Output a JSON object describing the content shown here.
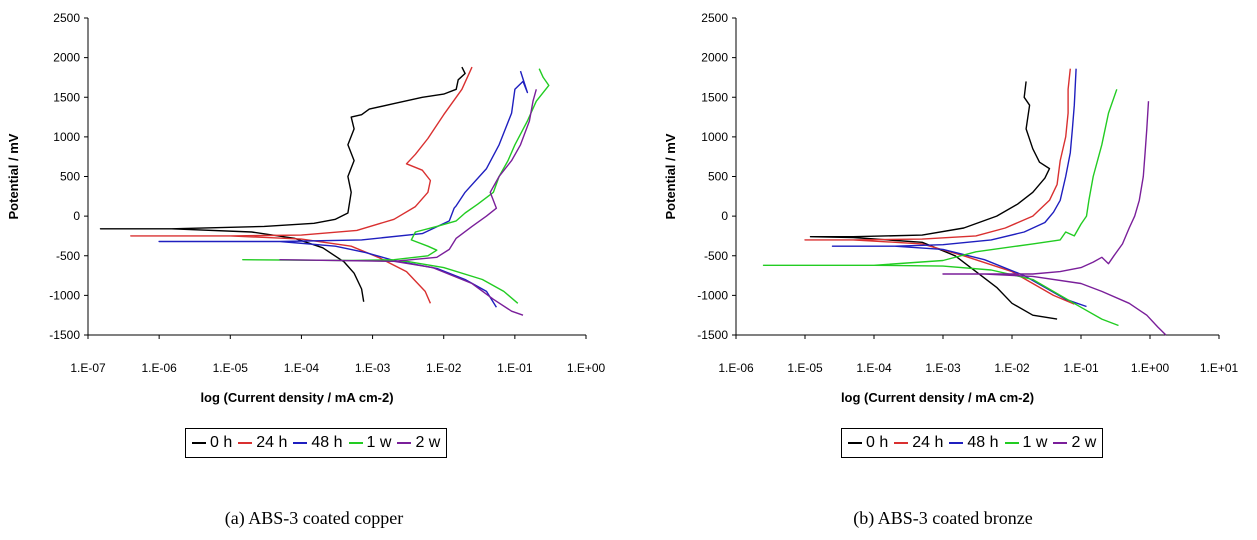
{
  "chart_data": [
    {
      "type": "line",
      "caption": "(a) ABS-3 coated copper",
      "xlabel": "log (Current density / mA cm-2)",
      "ylabel": "Potential / mV",
      "x_scale": "log",
      "xlim": [
        1e-07,
        1
      ],
      "ylim": [
        -1500,
        2500
      ],
      "x_tick_labels": [
        "1.E-07",
        "1.E-06",
        "1.E-05",
        "1.E-04",
        "1.E-03",
        "1.E-02",
        "1.E-01",
        "1.E+00"
      ],
      "y_tick_labels": [
        "2500",
        "2000",
        "1500",
        "1000",
        "500",
        "0",
        "-500",
        "-1000",
        "-1500"
      ],
      "legend_position": "bottom",
      "grid": false,
      "series": [
        {
          "name": "0 h",
          "color": "#000000",
          "points": [
            [
              0.00075,
              -1080
            ],
            [
              0.0007,
              -920
            ],
            [
              0.00055,
              -720
            ],
            [
              0.0004,
              -580
            ],
            [
              0.0002,
              -400
            ],
            [
              8e-05,
              -280
            ],
            [
              2e-05,
              -200
            ],
            [
              1.5e-06,
              -160
            ],
            [
              1.5e-07,
              -160
            ],
            [
              1.5e-06,
              -160
            ],
            [
              3e-05,
              -130
            ],
            [
              0.00015,
              -90
            ],
            [
              0.0003,
              -40
            ],
            [
              0.00045,
              40
            ],
            [
              0.0005,
              300
            ],
            [
              0.00045,
              500
            ],
            [
              0.00055,
              700
            ],
            [
              0.00045,
              900
            ],
            [
              0.00055,
              1100
            ],
            [
              0.0005,
              1250
            ],
            [
              0.0007,
              1280
            ],
            [
              0.0009,
              1350
            ],
            [
              0.002,
              1420
            ],
            [
              0.005,
              1500
            ],
            [
              0.01,
              1540
            ],
            [
              0.015,
              1600
            ],
            [
              0.016,
              1720
            ],
            [
              0.02,
              1800
            ],
            [
              0.018,
              1880
            ]
          ]
        },
        {
          "name": "24 h",
          "color": "#d93030",
          "points": [
            [
              0.0065,
              -1100
            ],
            [
              0.0055,
              -950
            ],
            [
              0.003,
              -700
            ],
            [
              0.0012,
              -520
            ],
            [
              0.0005,
              -380
            ],
            [
              0.0001,
              -290
            ],
            [
              1e-05,
              -250
            ],
            [
              4e-07,
              -250
            ],
            [
              1e-05,
              -250
            ],
            [
              0.0001,
              -240
            ],
            [
              0.0006,
              -180
            ],
            [
              0.002,
              -40
            ],
            [
              0.004,
              120
            ],
            [
              0.006,
              300
            ],
            [
              0.0065,
              450
            ],
            [
              0.005,
              580
            ],
            [
              0.003,
              660
            ],
            [
              0.004,
              780
            ],
            [
              0.006,
              980
            ],
            [
              0.01,
              1280
            ],
            [
              0.018,
              1600
            ],
            [
              0.025,
              1880
            ]
          ]
        },
        {
          "name": "48 h",
          "color": "#1f1fbf",
          "points": [
            [
              0.055,
              -1150
            ],
            [
              0.04,
              -950
            ],
            [
              0.02,
              -800
            ],
            [
              0.008,
              -660
            ],
            [
              0.002,
              -560
            ],
            [
              0.0008,
              -460
            ],
            [
              0.0003,
              -380
            ],
            [
              5e-05,
              -320
            ],
            [
              1e-06,
              -320
            ],
            [
              5e-05,
              -320
            ],
            [
              0.0007,
              -300
            ],
            [
              0.005,
              -220
            ],
            [
              0.012,
              -60
            ],
            [
              0.014,
              100
            ],
            [
              0.015,
              130
            ],
            [
              0.02,
              300
            ],
            [
              0.04,
              600
            ],
            [
              0.06,
              900
            ],
            [
              0.09,
              1300
            ],
            [
              0.1,
              1600
            ],
            [
              0.13,
              1700
            ],
            [
              0.15,
              1560
            ],
            [
              0.12,
              1830
            ]
          ]
        },
        {
          "name": "1 w",
          "color": "#22cc22",
          "points": [
            [
              0.11,
              -1100
            ],
            [
              0.07,
              -950
            ],
            [
              0.035,
              -800
            ],
            [
              0.01,
              -650
            ],
            [
              0.003,
              -570
            ],
            [
              0.0005,
              -560
            ],
            [
              1.5e-05,
              -550
            ],
            [
              0.0005,
              -560
            ],
            [
              0.002,
              -550
            ],
            [
              0.006,
              -500
            ],
            [
              0.008,
              -430
            ],
            [
              0.006,
              -380
            ],
            [
              0.0035,
              -300
            ],
            [
              0.004,
              -200
            ],
            [
              0.008,
              -130
            ],
            [
              0.015,
              -60
            ],
            [
              0.02,
              40
            ],
            [
              0.03,
              150
            ],
            [
              0.05,
              300
            ],
            [
              0.06,
              500
            ],
            [
              0.08,
              700
            ],
            [
              0.1,
              900
            ],
            [
              0.15,
              1200
            ],
            [
              0.2,
              1450
            ],
            [
              0.3,
              1650
            ],
            [
              0.25,
              1750
            ],
            [
              0.22,
              1860
            ]
          ]
        },
        {
          "name": "2 w",
          "color": "#7a1f9a",
          "points": [
            [
              0.13,
              -1250
            ],
            [
              0.09,
              -1200
            ],
            [
              0.05,
              -1050
            ],
            [
              0.025,
              -850
            ],
            [
              0.007,
              -650
            ],
            [
              0.002,
              -570
            ],
            [
              5e-05,
              -550
            ],
            [
              0.002,
              -570
            ],
            [
              0.008,
              -520
            ],
            [
              0.012,
              -420
            ],
            [
              0.015,
              -280
            ],
            [
              0.025,
              -130
            ],
            [
              0.04,
              0
            ],
            [
              0.055,
              100
            ],
            [
              0.045,
              300
            ],
            [
              0.06,
              500
            ],
            [
              0.09,
              700
            ],
            [
              0.12,
              900
            ],
            [
              0.16,
              1200
            ],
            [
              0.18,
              1450
            ],
            [
              0.2,
              1600
            ]
          ]
        }
      ]
    },
    {
      "type": "line",
      "caption": "(b) ABS-3 coated bronze",
      "xlabel": "log (Current density / mA cm-2)",
      "ylabel": "Potential / mV",
      "x_scale": "log",
      "xlim": [
        1e-06,
        10
      ],
      "ylim": [
        -1500,
        2500
      ],
      "x_tick_labels": [
        "1.E-06",
        "1.E-05",
        "1.E-04",
        "1.E-03",
        "1.E-02",
        "1.E-01",
        "1.E+00",
        "1.E+01"
      ],
      "y_tick_labels": [
        "2500",
        "2000",
        "1500",
        "1000",
        "500",
        "0",
        "-500",
        "-1000",
        "-1500"
      ],
      "legend_position": "bottom",
      "grid": false,
      "series": [
        {
          "name": "0 h",
          "color": "#000000",
          "points": [
            [
              0.045,
              -1300
            ],
            [
              0.02,
              -1250
            ],
            [
              0.01,
              -1100
            ],
            [
              0.006,
              -900
            ],
            [
              0.003,
              -700
            ],
            [
              0.0015,
              -500
            ],
            [
              0.0005,
              -330
            ],
            [
              5e-05,
              -270
            ],
            [
              1.2e-05,
              -260
            ],
            [
              5e-05,
              -260
            ],
            [
              0.0005,
              -240
            ],
            [
              0.002,
              -150
            ],
            [
              0.006,
              0
            ],
            [
              0.012,
              150
            ],
            [
              0.02,
              300
            ],
            [
              0.03,
              480
            ],
            [
              0.035,
              600
            ],
            [
              0.025,
              680
            ],
            [
              0.02,
              850
            ],
            [
              0.016,
              1100
            ],
            [
              0.018,
              1400
            ],
            [
              0.015,
              1500
            ],
            [
              0.016,
              1700
            ]
          ]
        },
        {
          "name": "24 h",
          "color": "#d93030",
          "points": [
            [
              0.08,
              -1110
            ],
            [
              0.04,
              -1000
            ],
            [
              0.02,
              -850
            ],
            [
              0.01,
              -700
            ],
            [
              0.002,
              -500
            ],
            [
              0.0005,
              -350
            ],
            [
              5e-05,
              -300
            ],
            [
              1e-05,
              -300
            ],
            [
              5e-05,
              -300
            ],
            [
              0.0005,
              -290
            ],
            [
              0.003,
              -250
            ],
            [
              0.008,
              -150
            ],
            [
              0.02,
              0
            ],
            [
              0.035,
              200
            ],
            [
              0.045,
              400
            ],
            [
              0.05,
              700
            ],
            [
              0.06,
              1000
            ],
            [
              0.065,
              1300
            ],
            [
              0.065,
              1600
            ],
            [
              0.07,
              1860
            ]
          ]
        },
        {
          "name": "48 h",
          "color": "#1f1fbf",
          "points": [
            [
              0.12,
              -1140
            ],
            [
              0.06,
              -1050
            ],
            [
              0.03,
              -900
            ],
            [
              0.015,
              -750
            ],
            [
              0.004,
              -550
            ],
            [
              0.001,
              -420
            ],
            [
              0.0002,
              -380
            ],
            [
              2.5e-05,
              -380
            ],
            [
              0.0002,
              -380
            ],
            [
              0.001,
              -360
            ],
            [
              0.005,
              -300
            ],
            [
              0.015,
              -200
            ],
            [
              0.03,
              -80
            ],
            [
              0.04,
              50
            ],
            [
              0.05,
              200
            ],
            [
              0.06,
              500
            ],
            [
              0.07,
              800
            ],
            [
              0.075,
              1100
            ],
            [
              0.08,
              1400
            ],
            [
              0.085,
              1860
            ]
          ]
        },
        {
          "name": "1 w",
          "color": "#22cc22",
          "points": [
            [
              0.35,
              -1380
            ],
            [
              0.2,
              -1300
            ],
            [
              0.1,
              -1150
            ],
            [
              0.05,
              -1000
            ],
            [
              0.02,
              -800
            ],
            [
              0.005,
              -680
            ],
            [
              0.001,
              -630
            ],
            [
              0.0001,
              -620
            ],
            [
              2.5e-06,
              -620
            ],
            [
              0.0001,
              -620
            ],
            [
              0.001,
              -560
            ],
            [
              0.003,
              -450
            ],
            [
              0.02,
              -350
            ],
            [
              0.05,
              -300
            ],
            [
              0.06,
              -200
            ],
            [
              0.08,
              -250
            ],
            [
              0.1,
              -100
            ],
            [
              0.12,
              0
            ],
            [
              0.13,
              200
            ],
            [
              0.15,
              500
            ],
            [
              0.2,
              900
            ],
            [
              0.25,
              1300
            ],
            [
              0.33,
              1600
            ]
          ]
        },
        {
          "name": "2 w",
          "color": "#7a1f9a",
          "points": [
            [
              1.7,
              -1500
            ],
            [
              1.3,
              -1400
            ],
            [
              0.9,
              -1250
            ],
            [
              0.5,
              -1100
            ],
            [
              0.2,
              -950
            ],
            [
              0.1,
              -850
            ],
            [
              0.02,
              -760
            ],
            [
              0.004,
              -730
            ],
            [
              0.001,
              -730
            ],
            [
              0.004,
              -730
            ],
            [
              0.02,
              -730
            ],
            [
              0.05,
              -700
            ],
            [
              0.1,
              -650
            ],
            [
              0.15,
              -580
            ],
            [
              0.2,
              -520
            ],
            [
              0.25,
              -600
            ],
            [
              0.3,
              -500
            ],
            [
              0.4,
              -350
            ],
            [
              0.5,
              -150
            ],
            [
              0.6,
              0
            ],
            [
              0.7,
              200
            ],
            [
              0.8,
              500
            ],
            [
              0.85,
              800
            ],
            [
              0.9,
              1100
            ],
            [
              0.95,
              1450
            ]
          ]
        }
      ]
    }
  ]
}
